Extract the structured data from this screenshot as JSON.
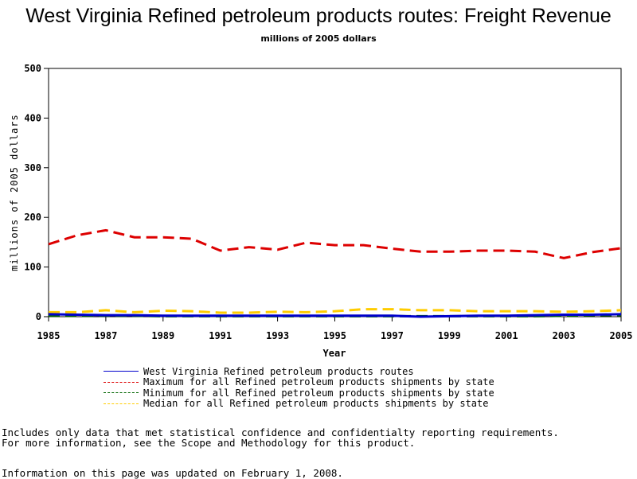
{
  "chart_data": {
    "type": "line",
    "title": "West Virginia Refined petroleum products routes: Freight Revenue",
    "subtitle": "millions of 2005 dollars",
    "xlabel": "Year",
    "ylabel": "millions of 2005 dollars",
    "xlim": [
      1985,
      2005
    ],
    "ylim": [
      0,
      500
    ],
    "xticks": [
      "1985",
      "1987",
      "1989",
      "1991",
      "1993",
      "1995",
      "1997",
      "1999",
      "2001",
      "2003",
      "2005"
    ],
    "yticks": [
      "0",
      "100",
      "200",
      "300",
      "400",
      "500"
    ],
    "x": [
      1985,
      1986,
      1987,
      1988,
      1989,
      1990,
      1991,
      1992,
      1993,
      1994,
      1995,
      1996,
      1997,
      1998,
      1999,
      2000,
      2001,
      2002,
      2003,
      2004,
      2005
    ],
    "series": [
      {
        "name": "West Virginia Refined petroleum products routes",
        "color": "#0000cc",
        "dash": "solid",
        "values": [
          5,
          4,
          3,
          3,
          2,
          2,
          2,
          2,
          2,
          2,
          2,
          2,
          2,
          0,
          1,
          2,
          2,
          3,
          4,
          4,
          5
        ]
      },
      {
        "name": "Maximum for all Refined petroleum products shipments by state",
        "color": "#dd0000",
        "dash": "dashed",
        "values": [
          146,
          164,
          174,
          160,
          160,
          157,
          133,
          140,
          135,
          149,
          144,
          144,
          137,
          131,
          131,
          133,
          133,
          131,
          118,
          130,
          138
        ]
      },
      {
        "name": "Minimum for all Refined petroleum products shipments by state",
        "color": "#006600",
        "dash": "dashed",
        "values": [
          2,
          2,
          2,
          2,
          1,
          1,
          1,
          1,
          1,
          1,
          1,
          1,
          1,
          1,
          1,
          1,
          1,
          1,
          2,
          3,
          3
        ]
      },
      {
        "name": "Median for all Refined petroleum products shipments by state",
        "color": "#ffcc00",
        "dash": "dashed",
        "values": [
          9,
          9,
          13,
          9,
          12,
          11,
          8,
          8,
          10,
          9,
          11,
          15,
          15,
          13,
          13,
          11,
          11,
          11,
          10,
          11,
          13
        ]
      }
    ]
  },
  "footnotes": {
    "line1": "Includes only data that met statistical confidence and confidentialty reporting requirements.",
    "line2": "For more information, see the Scope and Methodology for this product.",
    "line3": "Information on this page was updated on February 1, 2008."
  }
}
